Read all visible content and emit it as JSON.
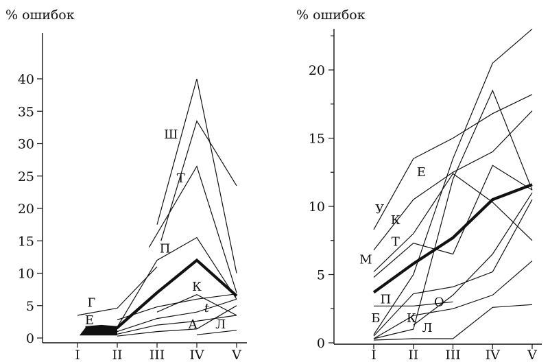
{
  "chart_data": [
    {
      "type": "line",
      "ylabel": "% ошибок",
      "categories": [
        "I",
        "II",
        "III",
        "IV",
        "V"
      ],
      "x_cont_range": [
        0.7,
        5.3
      ],
      "ylim": [
        0,
        44
      ],
      "yticks": [
        0,
        5,
        10,
        15,
        20,
        25,
        30,
        35,
        40
      ],
      "series": [
        {
          "points": [
            [
              1.2,
              1.6
            ],
            [
              1.6,
              1.8
            ],
            [
              2.0,
              1.6
            ],
            [
              3.0,
              7.0
            ],
            [
              4.0,
              12.0
            ],
            [
              5.0,
              6.5
            ]
          ],
          "bold": true
        },
        {
          "points": [
            [
              3.0,
              17.5
            ],
            [
              4.0,
              40.0
            ],
            [
              5.0,
              10.0
            ]
          ]
        },
        {
          "points": [
            [
              3.1,
              15.0
            ],
            [
              4.0,
              33.5
            ],
            [
              5.0,
              23.5
            ]
          ]
        },
        {
          "points": [
            [
              2.8,
              14.0
            ],
            [
              4.0,
              26.5
            ],
            [
              5.0,
              7.0
            ]
          ]
        },
        {
          "points": [
            [
              2.0,
              1.7
            ],
            [
              3.0,
              12.0
            ],
            [
              4.0,
              15.5
            ],
            [
              5.0,
              6.0
            ]
          ]
        },
        {
          "points": [
            [
              1.0,
              3.5
            ],
            [
              2.0,
              4.6
            ],
            [
              3.0,
              11.0
            ]
          ]
        },
        {
          "points": [
            [
              2.0,
              2.8
            ],
            [
              3.0,
              4.8
            ],
            [
              4.0,
              6.0
            ],
            [
              5.0,
              6.8
            ]
          ]
        },
        {
          "points": [
            [
              3.0,
              4.0
            ],
            [
              4.0,
              6.7
            ],
            [
              5.0,
              3.5
            ]
          ]
        },
        {
          "points": [
            [
              2.0,
              1.0
            ],
            [
              3.0,
              3.0
            ],
            [
              4.0,
              4.0
            ],
            [
              5.0,
              6.0
            ]
          ]
        },
        {
          "points": [
            [
              2.0,
              0.6
            ],
            [
              3.0,
              2.0
            ],
            [
              4.0,
              2.6
            ],
            [
              5.0,
              3.5
            ]
          ]
        },
        {
          "points": [
            [
              2.0,
              0.3
            ],
            [
              3.0,
              1.0
            ],
            [
              4.0,
              1.4
            ],
            [
              5.0,
              5.0
            ]
          ]
        },
        {
          "points": [
            [
              4.0,
              0.5
            ],
            [
              5.0,
              1.2
            ]
          ]
        }
      ],
      "annotations": [
        {
          "text": "Ш",
          "x": 3.35,
          "y": 30.8
        },
        {
          "text": "Т",
          "x": 3.6,
          "y": 24.0
        },
        {
          "text": "П",
          "x": 3.2,
          "y": 13.2
        },
        {
          "text": "К",
          "x": 4.0,
          "y": 7.3
        },
        {
          "text": "Г",
          "x": 1.35,
          "y": 4.8
        },
        {
          "text": "Е",
          "x": 1.3,
          "y": 2.1
        },
        {
          "text": "t",
          "x": 4.25,
          "y": 4.0
        },
        {
          "text": "А",
          "x": 3.9,
          "y": 1.5
        },
        {
          "text": "Л",
          "x": 4.6,
          "y": 1.5
        }
      ]
    },
    {
      "type": "line",
      "ylabel": "% ошибок",
      "categories": [
        "I",
        "II",
        "III",
        "IV",
        "V"
      ],
      "x_cont_range": [
        0.7,
        5.3
      ],
      "ylim": [
        0,
        23
      ],
      "yticks": [
        0,
        5,
        10,
        15,
        20
      ],
      "series": [
        {
          "points": [
            [
              1.0,
              3.7
            ],
            [
              2.0,
              5.8
            ],
            [
              3.0,
              7.7
            ],
            [
              4.0,
              10.5
            ],
            [
              5.0,
              11.6
            ]
          ],
          "bold": true
        },
        {
          "points": [
            [
              1.0,
              8.3
            ],
            [
              2.0,
              13.5
            ],
            [
              3.0,
              15.0
            ],
            [
              4.0,
              16.8
            ],
            [
              5.0,
              18.2
            ]
          ]
        },
        {
          "points": [
            [
              1.0,
              6.8
            ],
            [
              2.0,
              10.5
            ],
            [
              3.0,
              12.5
            ],
            [
              4.0,
              14.0
            ],
            [
              5.0,
              17.0
            ]
          ]
        },
        {
          "points": [
            [
              1.0,
              5.2
            ],
            [
              2.0,
              8.0
            ],
            [
              3.0,
              12.4
            ],
            [
              4.0,
              10.3
            ],
            [
              5.0,
              7.5
            ]
          ]
        },
        {
          "points": [
            [
              1.0,
              4.8
            ],
            [
              2.0,
              7.3
            ],
            [
              3.0,
              6.5
            ],
            [
              4.0,
              13.0
            ],
            [
              5.0,
              11.2
            ]
          ]
        },
        {
          "points": [
            [
              1.0,
              0.3
            ],
            [
              2.0,
              1.0
            ],
            [
              3.0,
              12.0
            ],
            [
              4.0,
              18.5
            ],
            [
              5.0,
              11.2
            ]
          ]
        },
        {
          "points": [
            [
              1.0,
              0.5
            ],
            [
              2.0,
              3.6
            ],
            [
              3.0,
              4.1
            ],
            [
              4.0,
              5.2
            ],
            [
              5.0,
              10.5
            ]
          ]
        },
        {
          "points": [
            [
              1.0,
              0.6
            ],
            [
              2.0,
              5.0
            ],
            [
              3.0,
              13.5
            ],
            [
              4.0,
              20.5
            ],
            [
              5.0,
              23.0
            ]
          ]
        },
        {
          "points": [
            [
              1.0,
              2.7
            ],
            [
              2.0,
              2.7
            ],
            [
              3.0,
              3.0
            ]
          ]
        },
        {
          "points": [
            [
              1.0,
              0.3
            ],
            [
              2.0,
              2.0
            ],
            [
              3.0,
              2.5
            ],
            [
              4.0,
              3.5
            ],
            [
              5.0,
              6.0
            ]
          ]
        },
        {
          "points": [
            [
              1.0,
              0.2
            ],
            [
              2.0,
              0.3
            ],
            [
              3.0,
              0.3
            ],
            [
              4.0,
              2.6
            ],
            [
              5.0,
              2.8
            ]
          ]
        },
        {
          "points": [
            [
              2.0,
              1.3
            ],
            [
              3.0,
              3.5
            ],
            [
              4.0,
              6.5
            ],
            [
              5.0,
              11.0
            ]
          ]
        }
      ],
      "annotations": [
        {
          "text": "Е",
          "x": 2.2,
          "y": 12.2
        },
        {
          "text": "У",
          "x": 1.15,
          "y": 9.5
        },
        {
          "text": "К",
          "x": 1.55,
          "y": 8.7
        },
        {
          "text": "Т",
          "x": 1.55,
          "y": 7.1
        },
        {
          "text": "М",
          "x": 0.8,
          "y": 5.8
        },
        {
          "text": "П",
          "x": 1.3,
          "y": 2.9
        },
        {
          "text": "О",
          "x": 2.65,
          "y": 2.7
        },
        {
          "text": "Б",
          "x": 1.05,
          "y": 1.5
        },
        {
          "text": "К",
          "x": 1.95,
          "y": 1.5
        },
        {
          "text": "Л",
          "x": 2.35,
          "y": 0.8
        }
      ]
    }
  ]
}
